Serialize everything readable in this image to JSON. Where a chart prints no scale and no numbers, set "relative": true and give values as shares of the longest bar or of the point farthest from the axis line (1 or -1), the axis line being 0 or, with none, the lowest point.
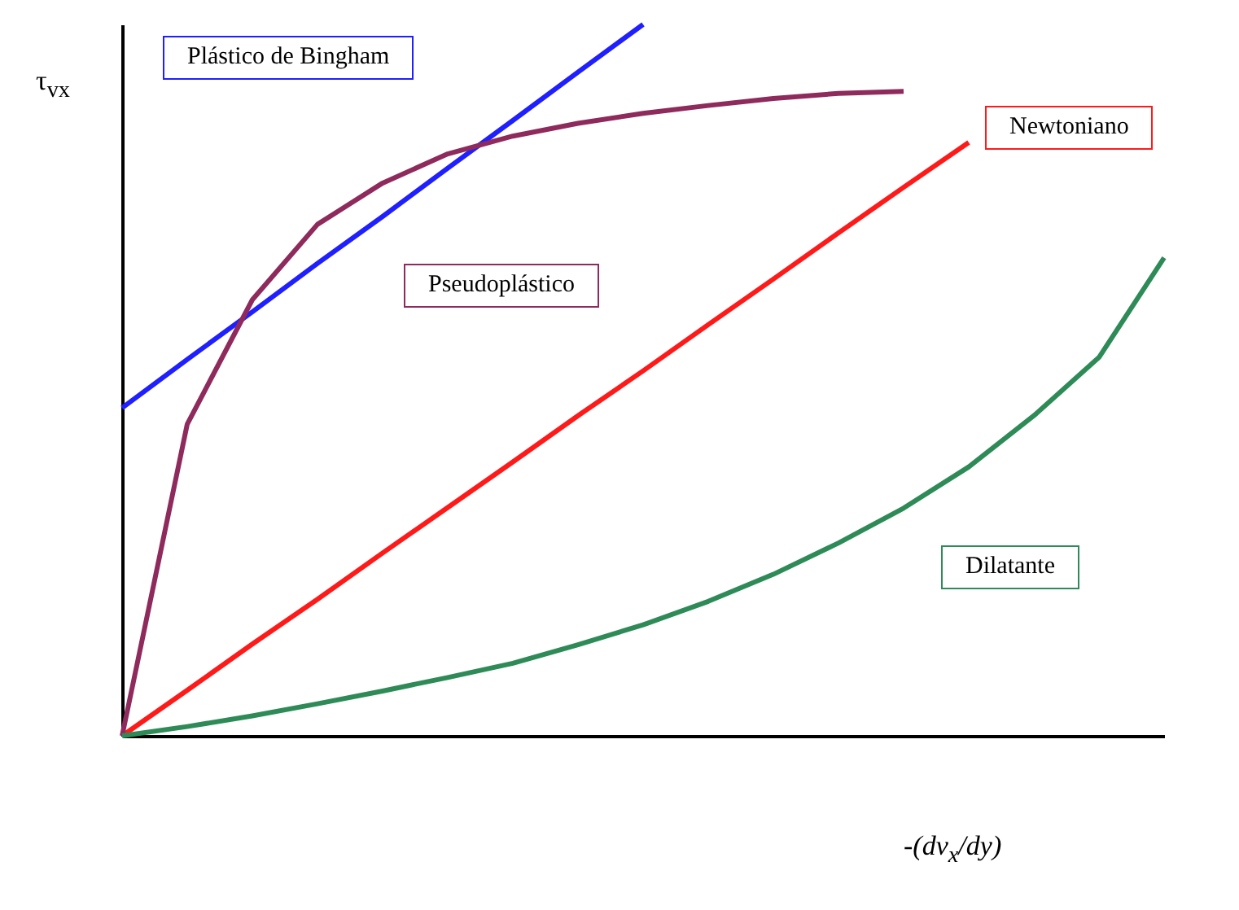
{
  "chart_data": {
    "type": "line",
    "relative": true,
    "xlabel": "-(dv$_{x}$/dy)",
    "ylabel": "τ$_{vx}$",
    "legend": false,
    "grid": false,
    "categories": [
      null,
      null,
      null,
      null,
      null,
      null,
      null,
      null,
      null,
      null,
      null,
      null,
      null,
      null,
      null,
      null,
      null
    ],
    "series": [
      {
        "name": "Plástico de Bingham",
        "color": "#1f1fff",
        "values": [
          0.461,
          0.529,
          0.596,
          0.664,
          0.73,
          0.798,
          0.865,
          0.933,
          1,
          null,
          null,
          null,
          null,
          null,
          null,
          null,
          null
        ]
      },
      {
        "name": "Newtoniano",
        "color": "#ff1a1a",
        "values": [
          0,
          0.064,
          0.129,
          0.192,
          0.257,
          0.321,
          0.385,
          0.45,
          0.513,
          0.578,
          0.642,
          0.707,
          0.771,
          0.834,
          null,
          null,
          null
        ]
      },
      {
        "name": "Pseudoplástico",
        "color": "#8e2a5c",
        "values": [
          0,
          0.438,
          0.613,
          0.719,
          0.777,
          0.818,
          0.843,
          0.861,
          0.875,
          0.886,
          0.896,
          0.903,
          0.906,
          null,
          null,
          null,
          null
        ]
      },
      {
        "name": "Dilatante",
        "color": "#2e8b57",
        "values": [
          0,
          0.013,
          0.028,
          0.045,
          0.063,
          0.082,
          0.102,
          0.128,
          0.156,
          0.189,
          0.227,
          0.271,
          0.32,
          0.378,
          0.45,
          0.532,
          0.672
        ]
      }
    ]
  }
}
